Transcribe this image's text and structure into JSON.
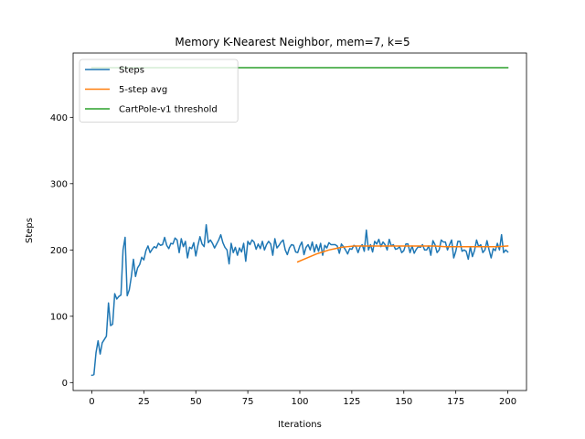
{
  "chart_data": {
    "type": "line",
    "title": "Memory K-Nearest Neighbor, mem=7, k=5",
    "xlabel": "Iterations",
    "ylabel": "Steps",
    "xlim": [
      -9,
      209
    ],
    "ylim": [
      -12,
      497
    ],
    "xticks": [
      0,
      25,
      50,
      75,
      100,
      125,
      150,
      175,
      200
    ],
    "yticks": [
      0,
      100,
      200,
      300,
      400
    ],
    "legend_position": "upper-left",
    "grid": false,
    "series": [
      {
        "name": "Steps",
        "color": "#1f77b4",
        "x_start": 0,
        "values": [
          11,
          12,
          45,
          63,
          43,
          60,
          65,
          70,
          120,
          86,
          88,
          134,
          126,
          130,
          132,
          200,
          219,
          131,
          140,
          160,
          186,
          160,
          173,
          178,
          189,
          185,
          199,
          206,
          196,
          201,
          205,
          203,
          210,
          207,
          208,
          219,
          207,
          202,
          210,
          209,
          218,
          215,
          196,
          217,
          205,
          213,
          188,
          204,
          202,
          211,
          191,
          207,
          220,
          209,
          205,
          238,
          211,
          215,
          210,
          203,
          209,
          215,
          223,
          211,
          204,
          200,
          179,
          210,
          196,
          204,
          192,
          203,
          197,
          210,
          183,
          213,
          208,
          215,
          212,
          201,
          209,
          202,
          213,
          200,
          208,
          213,
          209,
          192,
          217,
          203,
          207,
          212,
          215,
          200,
          193,
          203,
          208,
          207,
          197,
          196,
          206,
          212,
          193,
          204,
          208,
          200,
          212,
          197,
          208,
          198,
          210,
          192,
          207,
          203,
          211,
          208,
          208,
          208,
          206,
          195,
          209,
          205,
          200,
          194,
          202,
          201,
          207,
          205,
          196,
          205,
          208,
          198,
          230,
          200,
          208,
          197,
          213,
          209,
          216,
          205,
          212,
          208,
          200,
          216,
          206,
          208,
          201,
          202,
          205,
          196,
          199,
          209,
          209,
          196,
          206,
          195,
          201,
          205,
          204,
          208,
          200,
          200,
          206,
          192,
          214,
          208,
          196,
          200,
          215,
          212,
          212,
          200,
          208,
          215,
          188,
          198,
          213,
          213,
          198,
          200,
          198,
          186,
          205,
          190,
          199,
          215,
          205,
          208,
          196,
          200,
          214,
          200,
          188,
          202,
          199,
          210,
          200,
          223,
          196,
          200,
          197
        ]
      },
      {
        "name": "5-step avg",
        "color": "#ff7f0e",
        "x": [
          99,
          102,
          105,
          108,
          111,
          114,
          117,
          120,
          123,
          126,
          130,
          135,
          140,
          145,
          150,
          155,
          160,
          165,
          170,
          175,
          180,
          185,
          190,
          195,
          200
        ],
        "values": [
          182,
          186,
          190,
          194,
          197,
          200,
          202,
          204,
          205,
          206,
          206,
          206,
          206,
          206,
          206,
          206,
          206,
          206,
          205,
          205,
          205,
          205,
          205,
          205,
          206
        ]
      },
      {
        "name": "CartPole-v1 threshold",
        "color": "#2ca02c",
        "x": [
          0,
          200
        ],
        "values": [
          475,
          475
        ]
      }
    ]
  }
}
